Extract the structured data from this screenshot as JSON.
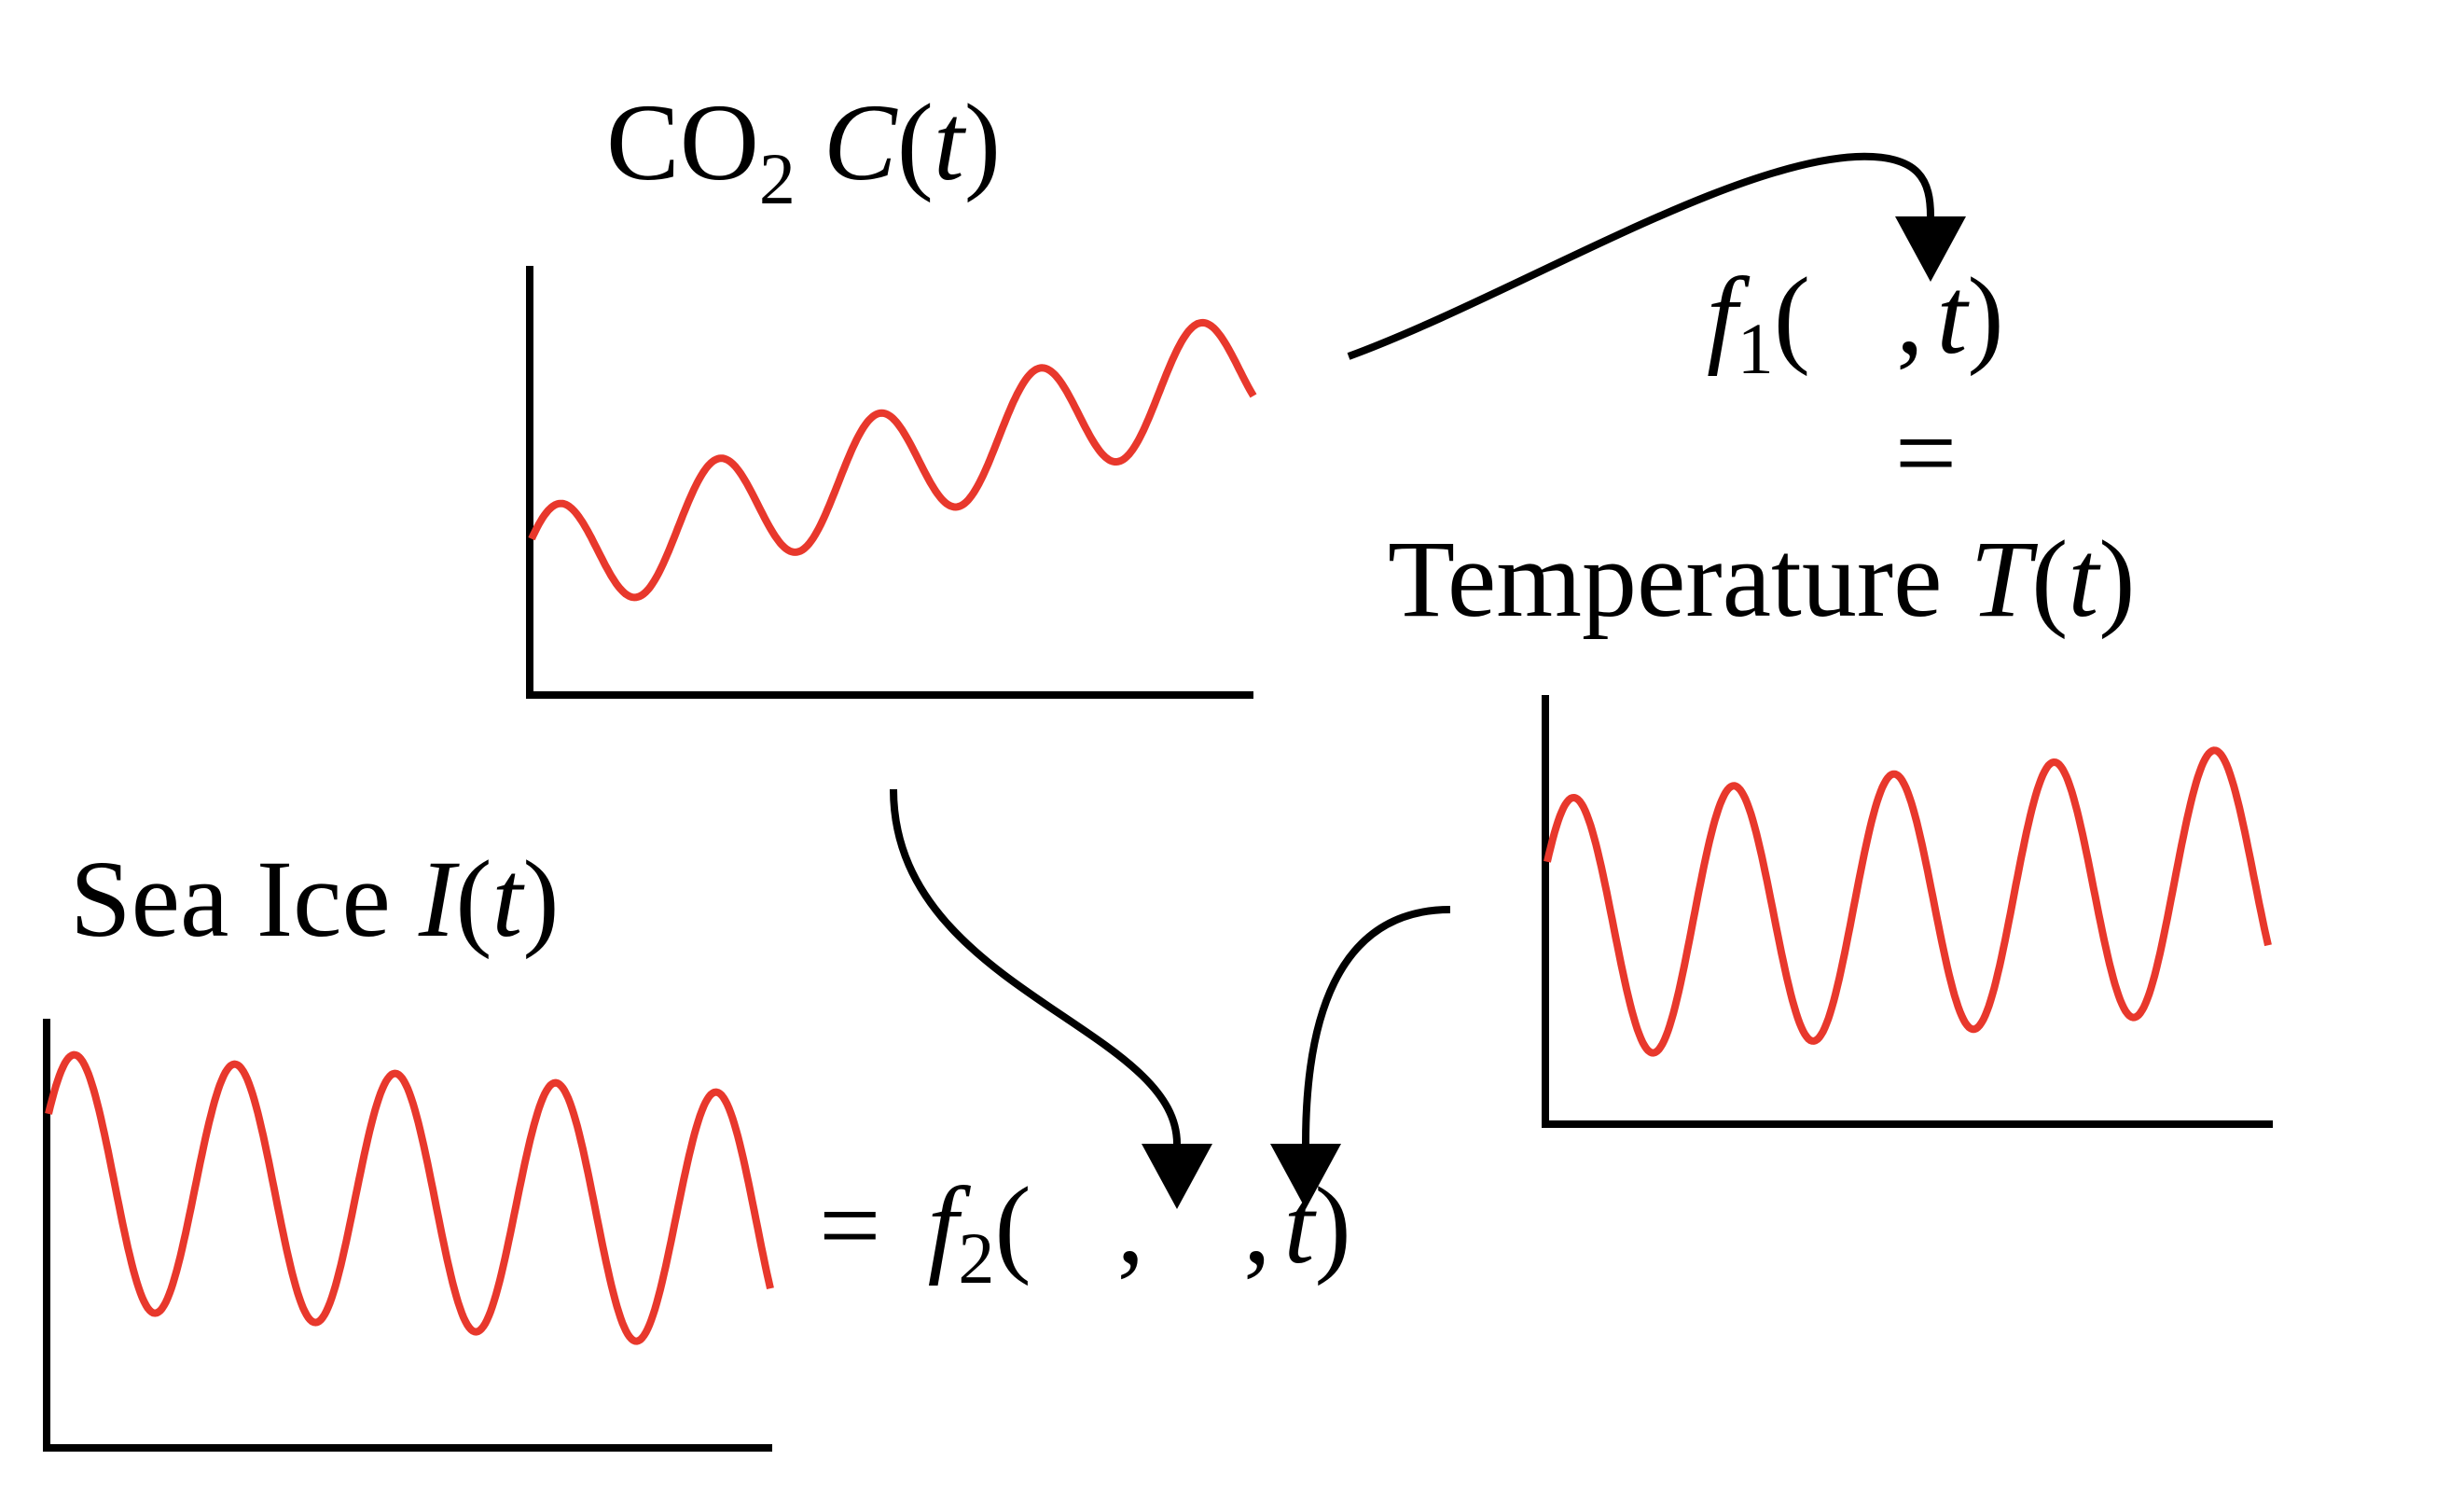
{
  "colors": {
    "curve": "#e8382c",
    "ink": "#000000",
    "background": "#ffffff"
  },
  "co2": {
    "name": "CO",
    "subscript": "2",
    "symbol": "C",
    "arg_open": "(",
    "arg": "t",
    "arg_close": ")"
  },
  "f1": {
    "symbol": "f",
    "subscript": "1",
    "open": "(",
    "sep": ",",
    "arg": "t",
    "close": ")"
  },
  "equals": "=",
  "temperature": {
    "name": "Temperature",
    "symbol": "T",
    "arg_open": "(",
    "arg": "t",
    "arg_close": ")"
  },
  "sea_ice": {
    "name": "Sea Ice",
    "symbol": "I",
    "arg_open": "(",
    "arg": "t",
    "arg_close": ")"
  },
  "f2": {
    "equals": "=",
    "symbol": "f",
    "subscript": "2",
    "open": "(",
    "sep1": ",",
    "sep2": ",",
    "arg": "t",
    "close": ")"
  },
  "plots": {
    "co2": {
      "trend": "rising oscillation",
      "cycles": 4.5
    },
    "temperature": {
      "trend": "steady oscillation",
      "cycles": 4.5
    },
    "sea_ice": {
      "trend": "steady oscillation",
      "cycles": 4.5
    }
  }
}
